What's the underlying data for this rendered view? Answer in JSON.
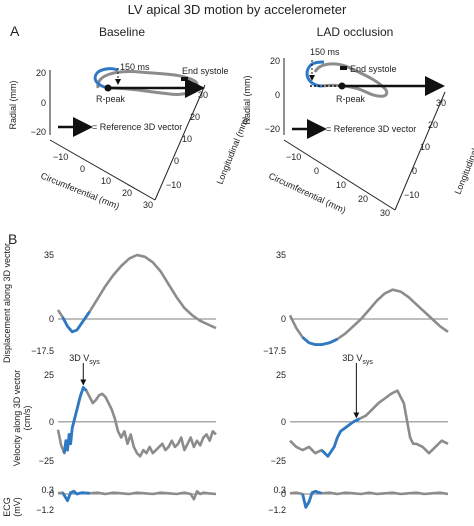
{
  "figure_title": "LV apical 3D motion by accelerometer",
  "panel_a": "A",
  "panel_b": "B",
  "colors": {
    "gray": "#8c8c8c",
    "blue": "#2f78c4",
    "black": "#111111"
  },
  "loops": [
    {
      "name": "Baseline",
      "label_150ms": "150 ms",
      "label_end_systole": "End systole",
      "label_rpeak": "R-peak",
      "legend_text": "= Reference 3D vector",
      "radial_axis": {
        "label": "Radial (mm)",
        "ticks": [
          "20",
          "0",
          "−20"
        ]
      },
      "circ_axis": {
        "label": "Circumferential (mm)",
        "ticks": [
          "−10",
          "0",
          "10",
          "20",
          "30"
        ]
      },
      "long_axis": {
        "label": "Longitudinal (mm)",
        "ticks": [
          "−10",
          "0",
          "10",
          "20",
          "30"
        ]
      }
    },
    {
      "name": "LAD occlusion",
      "label_150ms": "150 ms",
      "label_end_systole": "End systole",
      "label_rpeak": "R-peak",
      "legend_text": "= Reference 3D vector",
      "radial_axis": {
        "label": "Radial (mm)",
        "ticks": [
          "20",
          "0",
          "−20"
        ]
      },
      "circ_axis": {
        "label": "Circumferential (mm)",
        "ticks": [
          "−10",
          "0",
          "10",
          "20",
          "30"
        ]
      },
      "long_axis": {
        "label": "Longitudinal (mm)",
        "ticks": [
          "−10",
          "0",
          "10",
          "20",
          "30"
        ]
      }
    }
  ],
  "chart_data": [
    {
      "type": "line",
      "panel": "Baseline",
      "row": "displacement",
      "ylabel": "Displacement along 3D vector",
      "ylim": [
        -17.5,
        35
      ],
      "y_ticks": [
        "35",
        "0",
        "−17.5"
      ],
      "x": [
        0,
        0.03,
        0.06,
        0.09,
        0.12,
        0.16,
        0.2,
        0.25,
        0.3,
        0.35,
        0.4,
        0.45,
        0.5,
        0.55,
        0.6,
        0.65,
        0.7,
        0.75,
        0.8,
        0.85,
        0.9,
        0.95,
        1.0
      ],
      "y": [
        5,
        1,
        -4,
        -7,
        -6,
        -1,
        4,
        11,
        18,
        24,
        29,
        33,
        35,
        34,
        31,
        26,
        19,
        12,
        6,
        2,
        -1,
        -3,
        -5
      ],
      "highlight_range": [
        0.03,
        0.2
      ]
    },
    {
      "type": "line",
      "panel": "LAD occlusion",
      "row": "displacement",
      "ylabel": "",
      "ylim": [
        -17.5,
        35
      ],
      "y_ticks": [
        "35",
        "0",
        "−17.5"
      ],
      "x": [
        0,
        0.04,
        0.08,
        0.12,
        0.16,
        0.2,
        0.25,
        0.3,
        0.35,
        0.4,
        0.45,
        0.5,
        0.55,
        0.6,
        0.65,
        0.7,
        0.75,
        0.8,
        0.85,
        0.9,
        0.95,
        1.0
      ],
      "y": [
        2,
        -5,
        -10,
        -13,
        -14,
        -14,
        -13,
        -11,
        -8,
        -4,
        0,
        5,
        10,
        14,
        16,
        15,
        12,
        8,
        4,
        0,
        -4,
        -7
      ],
      "highlight_range": [
        0.06,
        0.3
      ]
    },
    {
      "type": "line",
      "panel": "Baseline",
      "row": "velocity",
      "ylabel": "Velocity along 3D vector",
      "unit": "(cm/s)",
      "ylim": [
        -25,
        30
      ],
      "y_ticks": [
        "25",
        "0",
        "−25"
      ],
      "annotation": "3D V",
      "annotation_sub": "sys",
      "x": [
        0,
        0.02,
        0.04,
        0.05,
        0.06,
        0.07,
        0.08,
        0.09,
        0.1,
        0.12,
        0.14,
        0.16,
        0.18,
        0.2,
        0.22,
        0.24,
        0.26,
        0.28,
        0.3,
        0.32,
        0.34,
        0.36,
        0.38,
        0.4,
        0.42,
        0.44,
        0.46,
        0.48,
        0.5,
        0.52,
        0.54,
        0.56,
        0.58,
        0.6,
        0.62,
        0.64,
        0.66,
        0.68,
        0.7,
        0.72,
        0.74,
        0.76,
        0.78,
        0.8,
        0.82,
        0.84,
        0.86,
        0.88,
        0.9,
        0.92,
        0.94,
        0.96,
        0.98,
        1.0
      ],
      "y": [
        -5,
        -15,
        -20,
        -12,
        -18,
        -8,
        -14,
        -4,
        0,
        8,
        16,
        22,
        20,
        16,
        12,
        14,
        17,
        18,
        16,
        12,
        8,
        2,
        -6,
        -10,
        -6,
        -14,
        -8,
        -16,
        -20,
        -22,
        -18,
        -20,
        -16,
        -20,
        -18,
        -16,
        -14,
        -18,
        -16,
        -12,
        -16,
        -14,
        -10,
        -18,
        -14,
        -10,
        -16,
        -12,
        -15,
        -10,
        -8,
        -12,
        -6,
        -8
      ],
      "highlight_range": [
        0.04,
        0.18
      ]
    },
    {
      "type": "line",
      "panel": "LAD occlusion",
      "row": "velocity",
      "ylabel": "",
      "ylim": [
        -25,
        30
      ],
      "y_ticks": [
        "25",
        "0",
        "−25"
      ],
      "annotation": "3D V",
      "annotation_sub": "sys",
      "x": [
        0,
        0.04,
        0.08,
        0.12,
        0.16,
        0.2,
        0.24,
        0.28,
        0.3,
        0.32,
        0.36,
        0.4,
        0.44,
        0.48,
        0.52,
        0.56,
        0.6,
        0.64,
        0.68,
        0.72,
        0.76,
        0.78,
        0.8,
        0.84,
        0.88,
        0.92,
        0.96,
        1.0
      ],
      "y": [
        -12,
        -16,
        -18,
        -16,
        -20,
        -18,
        -22,
        -16,
        -10,
        -6,
        -3,
        0,
        2,
        4,
        8,
        12,
        15,
        18,
        20,
        12,
        -10,
        -14,
        -14,
        -16,
        -20,
        -16,
        -12,
        -14
      ],
      "highlight_range": [
        0.2,
        0.44
      ]
    },
    {
      "type": "line",
      "panel": "Baseline",
      "row": "ecg",
      "ylabel": "ECG",
      "unit": "(mV)",
      "ylim": [
        -1.2,
        0.3
      ],
      "y_ticks": [
        "0.3",
        "0",
        "−1.2"
      ],
      "x": [
        0,
        0.03,
        0.06,
        0.08,
        0.1,
        0.12,
        0.15,
        0.2,
        0.25,
        0.3,
        0.35,
        0.4,
        0.45,
        0.5,
        0.55,
        0.6,
        0.65,
        0.7,
        0.75,
        0.8,
        0.84,
        0.86,
        0.88,
        0.9,
        0.92,
        0.95,
        1.0
      ],
      "y": [
        0.05,
        0.1,
        -0.5,
        0.1,
        0.2,
        0.0,
        0.1,
        0.05,
        0.1,
        0.0,
        0.1,
        0.05,
        0.0,
        0.1,
        0.05,
        0.0,
        0.1,
        0.05,
        0.0,
        0.1,
        0.0,
        -0.4,
        0.2,
        0.0,
        0.1,
        0.05,
        0.0
      ],
      "highlight_range": [
        0.03,
        0.2
      ]
    },
    {
      "type": "line",
      "panel": "LAD occlusion",
      "row": "ecg",
      "ylabel": "",
      "ylim": [
        -1.2,
        0.3
      ],
      "y_ticks": [
        "0.3",
        "0",
        "−1.2"
      ],
      "x": [
        0,
        0.04,
        0.08,
        0.1,
        0.12,
        0.14,
        0.16,
        0.2,
        0.25,
        0.3,
        0.35,
        0.4,
        0.45,
        0.5,
        0.55,
        0.6,
        0.65,
        0.7,
        0.75,
        0.8,
        0.85,
        0.9,
        0.95,
        1.0
      ],
      "y": [
        0.05,
        0.1,
        0.0,
        -1.0,
        -0.6,
        0.1,
        0.2,
        0.05,
        0.1,
        0.0,
        0.1,
        0.05,
        0.0,
        0.1,
        0.0,
        0.05,
        0.1,
        0.0,
        0.05,
        0.1,
        0.0,
        0.05,
        0.1,
        0.0
      ],
      "highlight_range": [
        0.06,
        0.2
      ]
    }
  ]
}
